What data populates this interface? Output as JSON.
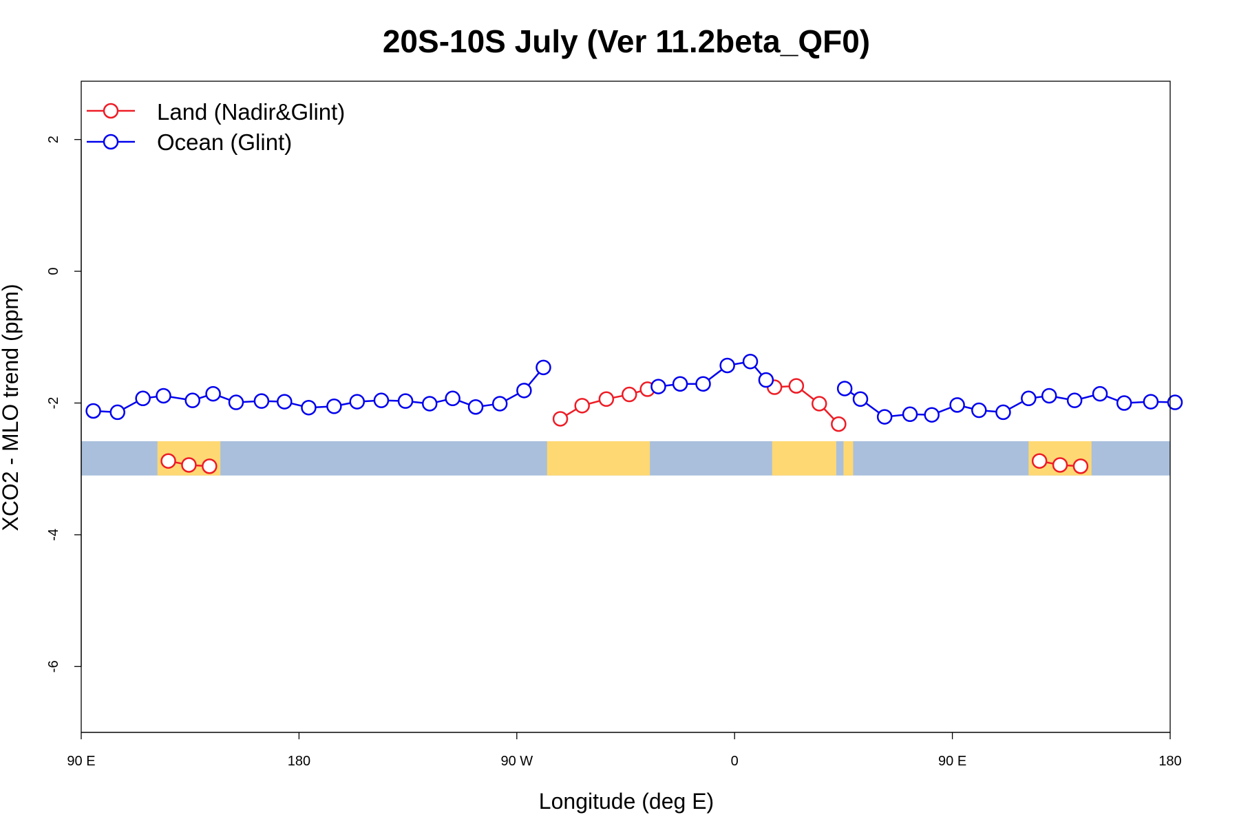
{
  "chart_data": {
    "type": "line",
    "title": "20S-10S July (Ver 11.2beta_QF0)",
    "xlabel": "Longitude (deg E)",
    "ylabel": "XCO2 - MLO trend (ppm)",
    "x_domain": [
      90,
      540
    ],
    "xlim": [
      90,
      540
    ],
    "ylim": [
      -7,
      3
    ],
    "x_ticks": [
      {
        "value": 90,
        "label": "90 E"
      },
      {
        "value": 180,
        "label": "180"
      },
      {
        "value": 270,
        "label": "90 W"
      },
      {
        "value": 360,
        "label": "0"
      },
      {
        "value": 450,
        "label": "90 E"
      },
      {
        "value": 540,
        "label": "180"
      }
    ],
    "y_ticks": [
      {
        "value": 2,
        "label": "2"
      },
      {
        "value": 0,
        "label": "0"
      },
      {
        "value": -2,
        "label": "-2"
      },
      {
        "value": -4,
        "label": "-4"
      },
      {
        "value": -6,
        "label": "-6"
      }
    ],
    "legend": {
      "position": "top-left"
    },
    "map_band": {
      "y_range": [
        -3.1,
        -2.58
      ],
      "ocean_color": "#a9bfdc",
      "land_color": "#fed873",
      "land_spans": [
        [
          121.5,
          147.5
        ],
        [
          282.5,
          325.0
        ],
        [
          375.5,
          402.0
        ],
        [
          405.0,
          409.0
        ],
        [
          481.5,
          507.5
        ]
      ]
    },
    "series": [
      {
        "name": "Land (Nadir&Glint)",
        "color": "#ee1c25",
        "segments": [
          [
            [
              126,
              -2.88
            ],
            [
              134.5,
              -2.94
            ],
            [
              143,
              -2.96
            ]
          ],
          [
            [
              288,
              -2.24
            ],
            [
              297,
              -2.04
            ],
            [
              307,
              -1.94
            ],
            [
              316.5,
              -1.87
            ],
            [
              324,
              -1.79
            ]
          ],
          [
            [
              376.5,
              -1.76
            ],
            [
              385.5,
              -1.74
            ],
            [
              395,
              -2.01
            ],
            [
              403,
              -2.32
            ]
          ],
          [
            [
              486,
              -2.88
            ],
            [
              494.5,
              -2.94
            ],
            [
              503,
              -2.96
            ]
          ]
        ]
      },
      {
        "name": "Ocean (Glint)",
        "color": "#0000ee",
        "segments": [
          [
            [
              95,
              -2.12
            ],
            [
              105,
              -2.14
            ],
            [
              115.5,
              -1.93
            ],
            [
              124,
              -1.89
            ],
            [
              136,
              -1.96
            ],
            [
              144.5,
              -1.86
            ],
            [
              154,
              -1.99
            ],
            [
              164.5,
              -1.97
            ],
            [
              174,
              -1.98
            ],
            [
              184,
              -2.07
            ],
            [
              194.5,
              -2.05
            ],
            [
              204,
              -1.98
            ],
            [
              214,
              -1.96
            ],
            [
              224,
              -1.97
            ],
            [
              234,
              -2.01
            ],
            [
              243.5,
              -1.93
            ],
            [
              253,
              -2.06
            ],
            [
              263,
              -2.01
            ],
            [
              273,
              -1.81
            ],
            [
              281,
              -1.46
            ]
          ],
          [
            [
              328.5,
              -1.75
            ],
            [
              337.5,
              -1.71
            ],
            [
              347,
              -1.71
            ],
            [
              357,
              -1.43
            ],
            [
              366.5,
              -1.37
            ],
            [
              373,
              -1.65
            ]
          ],
          [
            [
              405.5,
              -1.78
            ],
            [
              412,
              -1.94
            ],
            [
              422,
              -2.21
            ],
            [
              432.5,
              -2.17
            ],
            [
              441.5,
              -2.18
            ],
            [
              452,
              -2.03
            ],
            [
              461,
              -2.11
            ],
            [
              471,
              -2.14
            ],
            [
              481.5,
              -1.93
            ],
            [
              490,
              -1.89
            ],
            [
              500.5,
              -1.96
            ],
            [
              511,
              -1.86
            ],
            [
              521,
              -2.0
            ],
            [
              532,
              -1.98
            ],
            [
              542,
              -1.99
            ]
          ]
        ]
      }
    ]
  }
}
